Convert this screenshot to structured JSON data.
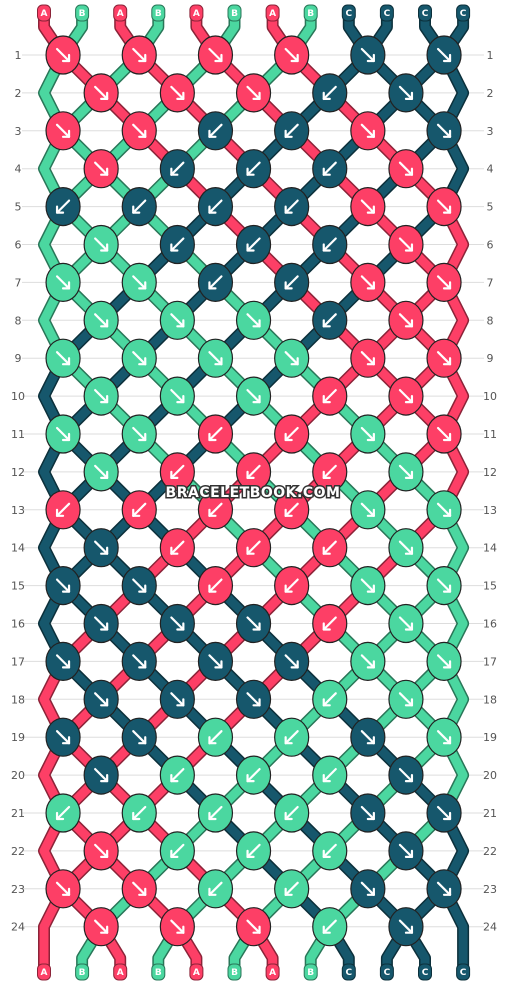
{
  "watermark": "BRACELETBOOK.COM",
  "colors": {
    "A": "#fd3f66",
    "B": "#4bd7a0",
    "C": "#16576c"
  },
  "strands_top": [
    "A",
    "B",
    "A",
    "B",
    "A",
    "B",
    "A",
    "B",
    "C",
    "C",
    "C",
    "C"
  ],
  "strands_bottom": [
    "A",
    "B",
    "A",
    "B",
    "A",
    "B",
    "A",
    "B",
    "C",
    "C",
    "C",
    "C"
  ],
  "rows": [
    "1",
    "2",
    "3",
    "4",
    "5",
    "6",
    "7",
    "8",
    "9",
    "10",
    "11",
    "12",
    "13",
    "14",
    "15",
    "16",
    "17",
    "18",
    "19",
    "20",
    "21",
    "22",
    "23",
    "24"
  ],
  "knots": [
    [
      {
        "c": "A",
        "d": "se"
      },
      {
        "c": "A",
        "d": "se"
      },
      {
        "c": "A",
        "d": "se"
      },
      {
        "c": "A",
        "d": "se"
      }
    ],
    [
      {
        "c": "A",
        "d": "se"
      },
      {
        "c": "A",
        "d": "se"
      },
      {
        "c": "A",
        "d": "se"
      },
      {
        "c": "C",
        "d": "sw"
      }
    ],
    [
      {
        "c": "A",
        "d": "se"
      },
      {
        "c": "A",
        "d": "se"
      },
      {
        "c": "C",
        "d": "sw"
      },
      {
        "c": "C",
        "d": "sw"
      }
    ],
    [
      {
        "c": "A",
        "d": "se"
      },
      {
        "c": "C",
        "d": "sw"
      },
      {
        "c": "C",
        "d": "sw"
      },
      {
        "c": "C",
        "d": "sw"
      }
    ],
    [
      {
        "c": "C",
        "d": "sw"
      },
      {
        "c": "C",
        "d": "sw"
      },
      {
        "c": "C",
        "d": "sw"
      },
      {
        "c": "C",
        "d": "sw"
      }
    ],
    [
      {
        "c": "B",
        "d": "se"
      },
      {
        "c": "C",
        "d": "sw"
      },
      {
        "c": "C",
        "d": "sw"
      },
      {
        "c": "C",
        "d": "sw"
      }
    ],
    [
      {
        "c": "B",
        "d": "se"
      },
      {
        "c": "B",
        "d": "se"
      },
      {
        "c": "C",
        "d": "sw"
      },
      {
        "c": "C",
        "d": "sw"
      }
    ],
    [
      {
        "c": "B",
        "d": "se"
      },
      {
        "c": "B",
        "d": "se"
      },
      {
        "c": "B",
        "d": "se"
      },
      {
        "c": "C",
        "d": "sw"
      }
    ],
    [
      {
        "c": "B",
        "d": "se"
      },
      {
        "c": "B",
        "d": "se"
      },
      {
        "c": "B",
        "d": "se"
      },
      {
        "c": "B",
        "d": "se"
      }
    ],
    [
      {
        "c": "B",
        "d": "se"
      },
      {
        "c": "B",
        "d": "se"
      },
      {
        "c": "B",
        "d": "se"
      },
      {
        "c": "A",
        "d": "sw"
      }
    ],
    [
      {
        "c": "B",
        "d": "se"
      },
      {
        "c": "B",
        "d": "se"
      },
      {
        "c": "A",
        "d": "sw"
      },
      {
        "c": "A",
        "d": "sw"
      }
    ],
    [
      {
        "c": "B",
        "d": "se"
      },
      {
        "c": "A",
        "d": "sw"
      },
      {
        "c": "A",
        "d": "sw"
      },
      {
        "c": "A",
        "d": "sw"
      }
    ],
    [
      {
        "c": "A",
        "d": "sw"
      },
      {
        "c": "A",
        "d": "sw"
      },
      {
        "c": "A",
        "d": "sw"
      },
      {
        "c": "A",
        "d": "sw"
      }
    ],
    [
      {
        "c": "C",
        "d": "se"
      },
      {
        "c": "A",
        "d": "sw"
      },
      {
        "c": "A",
        "d": "sw"
      },
      {
        "c": "A",
        "d": "sw"
      }
    ],
    [
      {
        "c": "C",
        "d": "se"
      },
      {
        "c": "C",
        "d": "se"
      },
      {
        "c": "A",
        "d": "sw"
      },
      {
        "c": "A",
        "d": "sw"
      }
    ],
    [
      {
        "c": "C",
        "d": "se"
      },
      {
        "c": "C",
        "d": "se"
      },
      {
        "c": "C",
        "d": "se"
      },
      {
        "c": "A",
        "d": "sw"
      }
    ],
    [
      {
        "c": "C",
        "d": "se"
      },
      {
        "c": "C",
        "d": "se"
      },
      {
        "c": "C",
        "d": "se"
      },
      {
        "c": "C",
        "d": "se"
      }
    ],
    [
      {
        "c": "C",
        "d": "se"
      },
      {
        "c": "C",
        "d": "se"
      },
      {
        "c": "C",
        "d": "se"
      },
      {
        "c": "B",
        "d": "sw"
      }
    ],
    [
      {
        "c": "C",
        "d": "se"
      },
      {
        "c": "C",
        "d": "se"
      },
      {
        "c": "B",
        "d": "sw"
      },
      {
        "c": "B",
        "d": "sw"
      }
    ],
    [
      {
        "c": "C",
        "d": "se"
      },
      {
        "c": "B",
        "d": "sw"
      },
      {
        "c": "B",
        "d": "sw"
      },
      {
        "c": "B",
        "d": "sw"
      }
    ],
    [
      {
        "c": "B",
        "d": "sw"
      },
      {
        "c": "B",
        "d": "sw"
      },
      {
        "c": "B",
        "d": "sw"
      },
      {
        "c": "B",
        "d": "sw"
      }
    ],
    [
      {
        "c": "A",
        "d": "se"
      },
      {
        "c": "B",
        "d": "sw"
      },
      {
        "c": "B",
        "d": "sw"
      },
      {
        "c": "B",
        "d": "sw"
      }
    ],
    [
      {
        "c": "A",
        "d": "se"
      },
      {
        "c": "A",
        "d": "se"
      },
      {
        "c": "B",
        "d": "sw"
      },
      {
        "c": "B",
        "d": "sw"
      }
    ],
    [
      {
        "c": "A",
        "d": "se"
      },
      {
        "c": "A",
        "d": "se"
      },
      {
        "c": "A",
        "d": "se"
      },
      {
        "c": "B",
        "d": "sw"
      }
    ]
  ]
}
